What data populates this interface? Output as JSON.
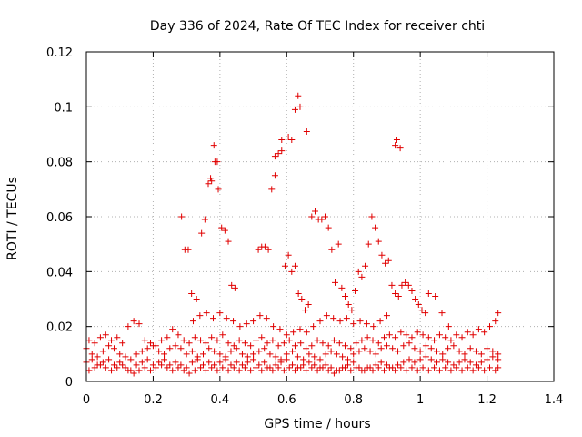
{
  "chart_data": {
    "type": "scatter",
    "title": "Day 336 of 2024, Rate Of TEC Index for receiver chti",
    "xlabel": "GPS time / hours",
    "ylabel": "ROTI / TECUs",
    "xlim": [
      0,
      1.4
    ],
    "ylim": [
      0,
      0.12
    ],
    "x_ticks": [
      0,
      0.2,
      0.4,
      0.6,
      0.8,
      1.0,
      1.2,
      1.4
    ],
    "x_tick_labels": [
      "0",
      "0.2",
      "0.4",
      "0.6",
      "0.8",
      "1",
      "1.2",
      "1.4"
    ],
    "y_ticks": [
      0,
      0.02,
      0.04,
      0.06,
      0.08,
      0.1,
      0.12
    ],
    "y_tick_labels": [
      "0",
      "0.02",
      "0.04",
      "0.06",
      "0.08",
      "0.1",
      "0.12"
    ],
    "grid": true,
    "marker": "+",
    "color": "#e00000",
    "series": [
      {
        "name": "ROTI",
        "x": [
          0.0,
          0.017,
          0.033,
          0.05,
          0.067,
          0.083,
          0.1,
          0.117,
          0.133,
          0.15,
          0.167,
          0.183,
          0.2,
          0.217,
          0.233,
          0.25,
          0.267,
          0.283,
          0.3,
          0.317,
          0.333,
          0.35,
          0.367,
          0.383,
          0.4,
          0.417,
          0.433,
          0.45,
          0.467,
          0.483,
          0.5,
          0.517,
          0.533,
          0.55,
          0.567,
          0.583,
          0.6,
          0.617,
          0.633,
          0.65,
          0.667,
          0.683,
          0.7,
          0.717,
          0.733,
          0.75,
          0.767,
          0.783,
          0.8,
          0.817,
          0.833,
          0.85,
          0.867,
          0.883,
          0.9,
          0.917,
          0.933,
          0.95,
          0.967,
          0.983,
          1.0,
          1.017,
          1.033,
          1.05,
          1.067,
          1.083,
          1.1,
          1.117,
          1.133,
          1.15,
          1.167,
          1.183,
          1.2,
          1.217,
          1.233,
          0.0,
          0.017,
          0.033,
          0.05,
          0.067,
          0.083,
          0.1,
          0.117,
          0.133,
          0.15,
          0.167,
          0.183,
          0.2,
          0.217,
          0.233,
          0.25,
          0.267,
          0.283,
          0.3,
          0.317,
          0.333,
          0.35,
          0.367,
          0.383,
          0.4,
          0.417,
          0.433,
          0.45,
          0.467,
          0.483,
          0.5,
          0.517,
          0.533,
          0.55,
          0.567,
          0.583,
          0.6,
          0.617,
          0.633,
          0.65,
          0.667,
          0.683,
          0.7,
          0.717,
          0.733,
          0.75,
          0.767,
          0.783,
          0.8,
          0.817,
          0.833,
          0.85,
          0.867,
          0.883,
          0.9,
          0.917,
          0.933,
          0.95,
          0.967,
          0.983,
          1.0,
          1.017,
          1.033,
          1.05,
          1.067,
          1.083,
          1.1,
          1.117,
          1.133,
          1.15,
          1.167,
          1.183,
          1.2,
          1.217,
          1.233,
          0.008,
          0.025,
          0.042,
          0.058,
          0.075,
          0.092,
          0.108,
          0.125,
          0.142,
          0.158,
          0.175,
          0.192,
          0.208,
          0.225,
          0.242,
          0.258,
          0.275,
          0.292,
          0.308,
          0.325,
          0.342,
          0.358,
          0.375,
          0.392,
          0.408,
          0.425,
          0.442,
          0.458,
          0.475,
          0.492,
          0.508,
          0.525,
          0.542,
          0.558,
          0.575,
          0.592,
          0.608,
          0.625,
          0.642,
          0.658,
          0.675,
          0.692,
          0.708,
          0.725,
          0.742,
          0.758,
          0.775,
          0.792,
          0.808,
          0.825,
          0.842,
          0.858,
          0.875,
          0.892,
          0.908,
          0.925,
          0.942,
          0.958,
          0.975,
          0.992,
          1.008,
          1.025,
          1.042,
          1.058,
          1.075,
          1.092,
          1.108,
          1.125,
          1.142,
          1.158,
          1.175,
          1.192,
          1.208,
          1.225,
          1.233,
          0.008,
          0.025,
          0.042,
          0.058,
          0.075,
          0.092,
          0.108,
          0.125,
          0.142,
          0.158,
          0.175,
          0.192,
          0.208,
          0.225,
          0.242,
          0.258,
          0.275,
          0.292,
          0.308,
          0.325,
          0.342,
          0.358,
          0.375,
          0.392,
          0.408,
          0.425,
          0.442,
          0.458,
          0.475,
          0.492,
          0.508,
          0.525,
          0.542,
          0.558,
          0.575,
          0.592,
          0.608,
          0.625,
          0.642,
          0.658,
          0.675,
          0.692,
          0.708,
          0.725,
          0.742,
          0.758,
          0.775,
          0.792,
          0.808,
          0.825,
          0.842,
          0.858,
          0.875,
          0.892,
          0.908,
          0.925,
          0.942,
          0.958,
          0.975,
          0.992,
          1.008,
          1.025,
          1.042,
          1.058,
          1.075,
          1.092,
          1.108,
          1.125,
          1.142,
          1.158,
          1.175,
          1.192,
          1.208,
          1.225,
          1.233,
          0.285,
          0.295,
          0.305,
          0.315,
          0.33,
          0.345,
          0.355,
          0.365,
          0.375,
          0.385,
          0.395,
          0.405,
          0.415,
          0.425,
          0.435,
          0.445,
          0.515,
          0.525,
          0.535,
          0.545,
          0.555,
          0.565,
          0.575,
          0.585,
          0.595,
          0.605,
          0.615,
          0.625,
          0.635,
          0.645,
          0.655,
          0.665,
          0.675,
          0.685,
          0.695,
          0.705,
          0.715,
          0.725,
          0.735,
          0.745,
          0.755,
          0.765,
          0.775,
          0.785,
          0.795,
          0.805,
          0.815,
          0.825,
          0.835,
          0.845,
          0.855,
          0.865,
          0.875,
          0.885,
          0.895,
          0.905,
          0.915,
          0.925,
          0.935,
          0.945,
          0.955,
          0.965,
          0.975,
          0.985,
          0.995,
          1.005,
          1.015,
          1.025,
          1.045,
          1.065,
          1.085,
          0.32,
          0.34,
          0.36,
          0.38,
          0.4,
          0.42,
          0.44,
          0.46,
          0.48,
          0.5,
          0.52,
          0.54,
          0.56,
          0.58,
          0.6,
          0.62,
          0.64,
          0.66,
          0.68,
          0.7,
          0.72,
          0.74,
          0.76,
          0.78,
          0.8,
          0.82,
          0.84,
          0.86,
          0.88,
          0.9,
          0.382,
          0.392,
          0.372,
          0.634,
          0.625,
          0.64,
          0.66,
          0.615,
          0.605,
          0.585,
          0.565,
          0.93,
          0.94,
          0.925
        ],
        "y": [
          0.012,
          0.01,
          0.009,
          0.011,
          0.013,
          0.012,
          0.01,
          0.009,
          0.008,
          0.01,
          0.011,
          0.012,
          0.013,
          0.011,
          0.01,
          0.012,
          0.013,
          0.012,
          0.01,
          0.011,
          0.009,
          0.01,
          0.012,
          0.011,
          0.01,
          0.009,
          0.011,
          0.012,
          0.01,
          0.009,
          0.01,
          0.011,
          0.012,
          0.01,
          0.009,
          0.008,
          0.01,
          0.011,
          0.009,
          0.008,
          0.01,
          0.009,
          0.008,
          0.01,
          0.011,
          0.01,
          0.009,
          0.008,
          0.01,
          0.011,
          0.012,
          0.011,
          0.01,
          0.012,
          0.013,
          0.012,
          0.011,
          0.013,
          0.014,
          0.012,
          0.011,
          0.013,
          0.012,
          0.011,
          0.01,
          0.012,
          0.013,
          0.011,
          0.01,
          0.012,
          0.011,
          0.01,
          0.012,
          0.011,
          0.01,
          0.007,
          0.008,
          0.006,
          0.007,
          0.008,
          0.006,
          0.007,
          0.005,
          0.004,
          0.006,
          0.007,
          0.008,
          0.006,
          0.007,
          0.008,
          0.006,
          0.007,
          0.006,
          0.005,
          0.007,
          0.008,
          0.006,
          0.007,
          0.006,
          0.007,
          0.008,
          0.006,
          0.007,
          0.006,
          0.007,
          0.008,
          0.006,
          0.007,
          0.005,
          0.006,
          0.007,
          0.008,
          0.006,
          0.005,
          0.006,
          0.007,
          0.006,
          0.005,
          0.006,
          0.005,
          0.004,
          0.005,
          0.006,
          0.007,
          0.005,
          0.004,
          0.005,
          0.006,
          0.007,
          0.006,
          0.005,
          0.006,
          0.007,
          0.008,
          0.007,
          0.008,
          0.009,
          0.008,
          0.007,
          0.008,
          0.007,
          0.006,
          0.007,
          0.008,
          0.007,
          0.006,
          0.007,
          0.008,
          0.009,
          0.008,
          0.015,
          0.014,
          0.016,
          0.017,
          0.015,
          0.016,
          0.014,
          0.02,
          0.022,
          0.021,
          0.015,
          0.014,
          0.013,
          0.015,
          0.016,
          0.019,
          0.017,
          0.015,
          0.014,
          0.016,
          0.015,
          0.014,
          0.016,
          0.015,
          0.017,
          0.014,
          0.013,
          0.015,
          0.014,
          0.013,
          0.015,
          0.016,
          0.014,
          0.015,
          0.013,
          0.014,
          0.015,
          0.013,
          0.014,
          0.012,
          0.013,
          0.015,
          0.014,
          0.013,
          0.015,
          0.014,
          0.013,
          0.012,
          0.014,
          0.015,
          0.016,
          0.015,
          0.014,
          0.016,
          0.017,
          0.016,
          0.018,
          0.017,
          0.016,
          0.018,
          0.017,
          0.016,
          0.015,
          0.017,
          0.016,
          0.015,
          0.017,
          0.016,
          0.018,
          0.017,
          0.019,
          0.018,
          0.02,
          0.022,
          0.025,
          0.004,
          0.005,
          0.006,
          0.005,
          0.004,
          0.005,
          0.006,
          0.004,
          0.003,
          0.004,
          0.005,
          0.004,
          0.005,
          0.006,
          0.005,
          0.004,
          0.005,
          0.004,
          0.003,
          0.004,
          0.005,
          0.004,
          0.005,
          0.004,
          0.005,
          0.004,
          0.005,
          0.004,
          0.005,
          0.004,
          0.005,
          0.004,
          0.005,
          0.004,
          0.005,
          0.004,
          0.005,
          0.004,
          0.005,
          0.004,
          0.005,
          0.004,
          0.005,
          0.004,
          0.003,
          0.004,
          0.005,
          0.004,
          0.005,
          0.004,
          0.005,
          0.004,
          0.005,
          0.004,
          0.005,
          0.004,
          0.005,
          0.004,
          0.005,
          0.004,
          0.005,
          0.004,
          0.005,
          0.004,
          0.005,
          0.004,
          0.005,
          0.004,
          0.005,
          0.004,
          0.005,
          0.004,
          0.005,
          0.004,
          0.005,
          0.06,
          0.048,
          0.048,
          0.032,
          0.03,
          0.054,
          0.059,
          0.072,
          0.073,
          0.08,
          0.07,
          0.056,
          0.055,
          0.051,
          0.035,
          0.034,
          0.048,
          0.049,
          0.049,
          0.048,
          0.07,
          0.075,
          0.083,
          0.088,
          0.042,
          0.046,
          0.04,
          0.042,
          0.032,
          0.03,
          0.026,
          0.028,
          0.06,
          0.062,
          0.059,
          0.059,
          0.06,
          0.056,
          0.048,
          0.036,
          0.05,
          0.034,
          0.031,
          0.028,
          0.026,
          0.033,
          0.04,
          0.038,
          0.042,
          0.05,
          0.06,
          0.056,
          0.051,
          0.046,
          0.043,
          0.044,
          0.035,
          0.032,
          0.031,
          0.035,
          0.036,
          0.035,
          0.033,
          0.03,
          0.028,
          0.026,
          0.025,
          0.032,
          0.031,
          0.025,
          0.02,
          0.022,
          0.024,
          0.025,
          0.023,
          0.025,
          0.023,
          0.022,
          0.02,
          0.021,
          0.022,
          0.024,
          0.023,
          0.02,
          0.019,
          0.017,
          0.018,
          0.019,
          0.018,
          0.02,
          0.022,
          0.024,
          0.023,
          0.022,
          0.023,
          0.021,
          0.022,
          0.021,
          0.02,
          0.022,
          0.024,
          0.086,
          0.08,
          0.074,
          0.104,
          0.099,
          0.1,
          0.091,
          0.088,
          0.089,
          0.084,
          0.082,
          0.088,
          0.085,
          0.086
        ]
      }
    ]
  }
}
